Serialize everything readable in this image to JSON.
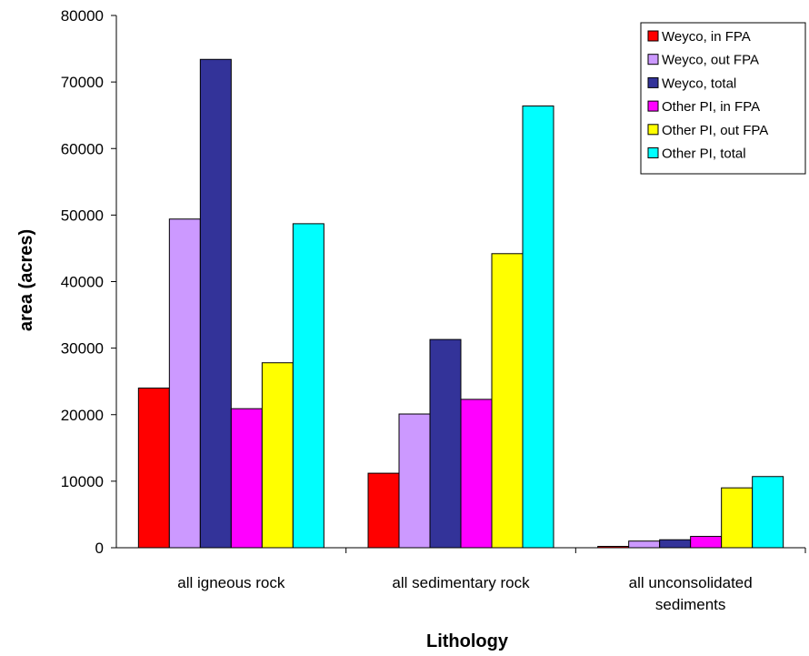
{
  "chart_data": {
    "type": "bar",
    "xlabel": "Lithology",
    "ylabel": "area (acres)",
    "ylim": [
      0,
      80000
    ],
    "yticks": [
      0,
      10000,
      20000,
      30000,
      40000,
      50000,
      60000,
      70000,
      80000
    ],
    "grid": false,
    "legend": "top-right",
    "categories": [
      [
        "all igneous rock"
      ],
      [
        "all sedimentary rock"
      ],
      [
        "all unconsolidated",
        "sediments"
      ]
    ],
    "series": [
      {
        "name": "Weyco, in FPA",
        "color": "#ff0000",
        "values": [
          24000,
          11200,
          200
        ]
      },
      {
        "name": "Weyco, out FPA",
        "color": "#cc99ff",
        "values": [
          49400,
          20100,
          1000
        ]
      },
      {
        "name": "Weyco, total",
        "color": "#333399",
        "values": [
          73400,
          31300,
          1200
        ]
      },
      {
        "name": "Other PI, in FPA",
        "color": "#ff00ff",
        "values": [
          20900,
          22300,
          1700
        ]
      },
      {
        "name": "Other PI, out FPA",
        "color": "#ffff00",
        "values": [
          27800,
          44200,
          9000
        ]
      },
      {
        "name": "Other PI, total",
        "color": "#00ffff",
        "values": [
          48700,
          66400,
          10700
        ]
      }
    ]
  }
}
